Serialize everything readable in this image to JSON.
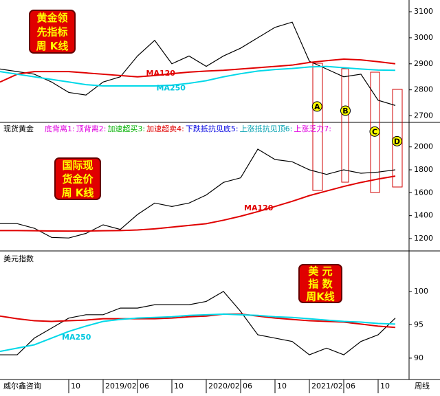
{
  "chart_data": [
    {
      "type": "line",
      "title": [
        "黄金领",
        "先指标",
        "周 K线"
      ],
      "x": [
        0,
        2,
        4,
        6,
        8,
        10,
        12,
        14,
        16,
        18,
        20,
        22,
        24,
        26,
        28,
        30,
        32,
        34,
        36,
        38,
        40,
        42,
        44,
        46
      ],
      "xlim": [
        0,
        47.6
      ],
      "ylim": [
        2675,
        3145
      ],
      "yticks": [
        2700,
        2800,
        2900,
        3000,
        3100
      ],
      "series": [
        {
          "name": "K线",
          "color": "#000000",
          "values": [
            2880,
            2870,
            2860,
            2830,
            2790,
            2780,
            2830,
            2850,
            2930,
            2990,
            2900,
            2930,
            2890,
            2930,
            2960,
            3000,
            3040,
            3060,
            2910,
            2880,
            2850,
            2860,
            2760,
            2740
          ]
        },
        {
          "name": "MA120",
          "color": "#e00000",
          "values": [
            2830,
            2860,
            2870,
            2870,
            2870,
            2865,
            2860,
            2855,
            2850,
            2855,
            2862,
            2868,
            2872,
            2875,
            2880,
            2885,
            2890,
            2895,
            2905,
            2912,
            2918,
            2915,
            2908,
            2900
          ]
        },
        {
          "name": "MA250",
          "color": "#00d8e8",
          "values": [
            2870,
            2860,
            2850,
            2840,
            2830,
            2820,
            2815,
            2815,
            2815,
            2815,
            2818,
            2825,
            2835,
            2850,
            2862,
            2872,
            2878,
            2882,
            2888,
            2890,
            2885,
            2880,
            2876,
            2875
          ]
        }
      ],
      "annotations": [
        {
          "text": "MA120",
          "x": 17,
          "y": 2863,
          "color": "#e00000"
        },
        {
          "text": "MA250",
          "x": 18.2,
          "y": 2806,
          "color": "#00c8e0"
        },
        {
          "text": "A",
          "x": 36.9,
          "y": 2736,
          "color": "#000000"
        },
        {
          "text": "B",
          "x": 40.2,
          "y": 2720,
          "color": "#000000"
        }
      ]
    },
    {
      "type": "line",
      "title": [
        "国际现",
        "货金价",
        "周 K线"
      ],
      "header": "现货黄金",
      "legend": [
        {
          "text": "底背离1:",
          "color": "#e000e0"
        },
        {
          "text": "顶背离2:",
          "color": "#e000e0"
        },
        {
          "text": "加速超买3:",
          "color": "#00b000"
        },
        {
          "text": "加速超卖4:",
          "color": "#e00000"
        },
        {
          "text": "下跌抵抗见底5:",
          "color": "#0000e0"
        },
        {
          "text": "上涨抵抗见顶6:",
          "color": "#00a0b0"
        },
        {
          "text": "上涨乏力7:",
          "color": "#e000e0"
        }
      ],
      "x": [
        0,
        2,
        4,
        6,
        8,
        10,
        12,
        14,
        16,
        18,
        20,
        22,
        24,
        26,
        28,
        30,
        32,
        34,
        36,
        38,
        40,
        42,
        44,
        46
      ],
      "xlim": [
        0,
        47.6
      ],
      "ylim": [
        1110,
        2100
      ],
      "yticks": [
        1200,
        1400,
        1600,
        1800,
        2000
      ],
      "series": [
        {
          "name": "K线",
          "color": "#000000",
          "values": [
            1330,
            1330,
            1290,
            1210,
            1205,
            1245,
            1320,
            1280,
            1410,
            1510,
            1480,
            1510,
            1580,
            1690,
            1730,
            1980,
            1890,
            1870,
            1800,
            1760,
            1800,
            1770,
            1780,
            1800
          ]
        },
        {
          "name": "MA120",
          "color": "#e00000",
          "values": [
            1270,
            1270,
            1268,
            1266,
            1265,
            1266,
            1268,
            1270,
            1275,
            1285,
            1300,
            1315,
            1330,
            1360,
            1395,
            1435,
            1480,
            1525,
            1575,
            1615,
            1655,
            1690,
            1720,
            1745
          ]
        }
      ],
      "annotations": [
        {
          "text": "MA120",
          "x": 28.4,
          "y": 1465,
          "color": "#e00000"
        },
        {
          "text": "C",
          "x": 43.6,
          "y": 2134,
          "color": "#000000"
        },
        {
          "text": "D",
          "x": 46.2,
          "y": 2050,
          "color": "#000000"
        }
      ]
    },
    {
      "type": "line",
      "title": [
        "美 元",
        "指 数",
        "周K线"
      ],
      "header": "美元指数",
      "x": [
        0,
        2,
        4,
        6,
        8,
        10,
        12,
        14,
        16,
        18,
        20,
        22,
        24,
        26,
        28,
        30,
        32,
        34,
        36,
        38,
        40,
        42,
        44,
        46
      ],
      "xlim": [
        0,
        47.6
      ],
      "ylim": [
        87,
        103.8
      ],
      "yticks": [
        90,
        95,
        100
      ],
      "xticks": [
        {
          "value": 8,
          "label": "10"
        },
        {
          "value": 12,
          "label": "2019/02"
        },
        {
          "value": 16,
          "label": "06"
        },
        {
          "value": 20,
          "label": "10"
        },
        {
          "value": 24,
          "label": "2020/02"
        },
        {
          "value": 28,
          "label": "06"
        },
        {
          "value": 32,
          "label": "10"
        },
        {
          "value": 36,
          "label": "2021/02"
        },
        {
          "value": 40,
          "label": "06"
        },
        {
          "value": 44,
          "label": "10"
        }
      ],
      "series": [
        {
          "name": "K线",
          "color": "#000000",
          "values": [
            90.5,
            90.5,
            93,
            94.5,
            96,
            96.5,
            96.5,
            97.5,
            97.5,
            98,
            98,
            98,
            98.5,
            100,
            97,
            93.5,
            93,
            92.5,
            90.5,
            91.5,
            90.5,
            92.5,
            93.5,
            96
          ]
        },
        {
          "name": "MA120",
          "color": "#e00000",
          "values": [
            96.3,
            95.9,
            95.6,
            95.5,
            95.6,
            95.7,
            95.9,
            95.9,
            95.9,
            95.9,
            96,
            96.2,
            96.3,
            96.6,
            96.6,
            96.3,
            96,
            95.8,
            95.6,
            95.5,
            95.4,
            95.1,
            94.8,
            94.6
          ]
        },
        {
          "name": "MA250",
          "color": "#00d8e8",
          "values": [
            91,
            91.5,
            92,
            93,
            94,
            94.8,
            95.5,
            95.8,
            96,
            96.1,
            96.2,
            96.4,
            96.5,
            96.6,
            96.5,
            96.4,
            96.2,
            96.1,
            95.9,
            95.7,
            95.5,
            95.4,
            95.2,
            95.1
          ]
        }
      ],
      "annotations": [
        {
          "text": "MA250",
          "x": 7.2,
          "y": 93.1,
          "color": "#00c8e0"
        }
      ]
    }
  ],
  "footer": {
    "source": "威尔鑫咨询",
    "period": "周线"
  }
}
